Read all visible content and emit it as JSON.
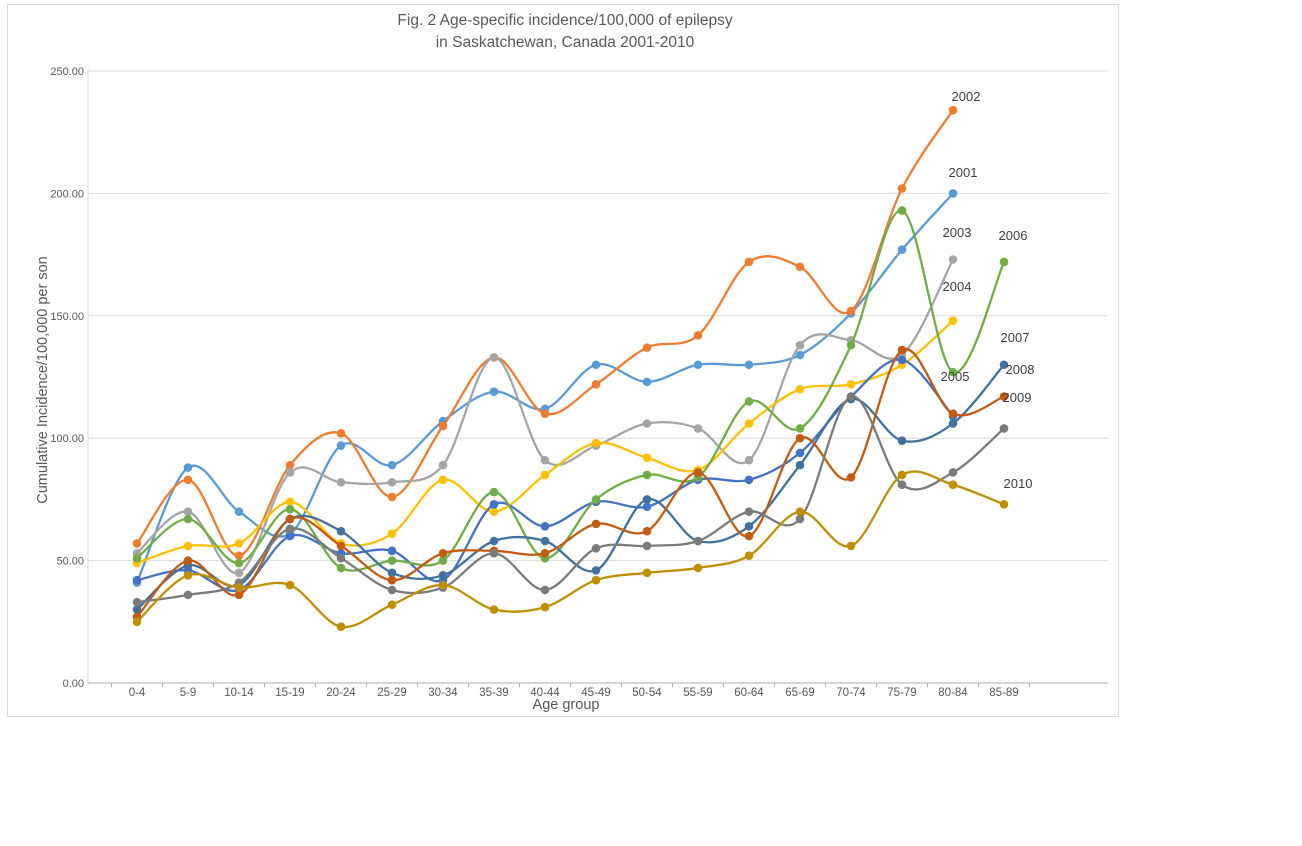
{
  "title": {
    "line1": "Fig. 2 Age-specific incidence/100,000 of epilepsy",
    "line2": "in Saskatchewan, Canada 2001-2010"
  },
  "y_axis": {
    "title": "Cumulative Incidence/100,000 per son",
    "min": 0,
    "max": 250,
    "step": 50,
    "tick_decimals": 2
  },
  "x_axis": {
    "title": "Age group"
  },
  "chart_data": {
    "type": "line",
    "title": "Fig. 2 Age-specific incidence/100,000 of epilepsy in Saskatchewan, Canada 2001-2010",
    "xlabel": "Age group",
    "ylabel": "Cumulative Incidence/100,000 per son",
    "ylim": [
      0,
      250
    ],
    "grid": "horizontal",
    "smooth": true,
    "legend_position": "data-labels-at-line-end",
    "categories": [
      "0-4",
      "5-9",
      "10-14",
      "15-19",
      "20-24",
      "25-29",
      "30-34",
      "35-39",
      "40-44",
      "45-49",
      "50-54",
      "55-59",
      "60-64",
      "65-69",
      "70-74",
      "75-79",
      "80-84",
      "85-89"
    ],
    "series": [
      {
        "name": "2001",
        "color": "#5B9BD5",
        "label_x": 963,
        "label_y": 173,
        "values": [
          41,
          88,
          70,
          61,
          97,
          89,
          107,
          119,
          112,
          130,
          123,
          130,
          130,
          134,
          151,
          177,
          200,
          null
        ]
      },
      {
        "name": "2002",
        "color": "#ED7D31",
        "label_x": 966,
        "label_y": 97,
        "values": [
          57,
          83,
          52,
          89,
          102,
          76,
          105,
          133,
          110,
          122,
          137,
          142,
          172,
          170,
          152,
          202,
          234,
          null
        ]
      },
      {
        "name": "2003",
        "color": "#A5A5A5",
        "label_x": 957,
        "label_y": 233,
        "values": [
          53,
          70,
          45,
          86,
          82,
          82,
          89,
          133,
          91,
          97,
          106,
          104,
          91,
          138,
          140,
          134,
          173,
          null
        ]
      },
      {
        "name": "2004",
        "color": "#FFC000",
        "label_x": 957,
        "label_y": 287,
        "values": [
          49,
          56,
          57,
          74,
          57,
          61,
          83,
          70,
          85,
          98,
          92,
          87,
          106,
          120,
          122,
          130,
          148,
          null
        ]
      },
      {
        "name": "2005",
        "color": "#4472C4",
        "label_x": 955,
        "label_y": 377,
        "values": [
          42,
          46,
          38,
          60,
          53,
          54,
          42,
          73,
          64,
          74,
          72,
          83,
          83,
          94,
          117,
          132,
          109,
          null
        ]
      },
      {
        "name": "2006",
        "color": "#70AD47",
        "label_x": 1013,
        "label_y": 236,
        "values": [
          51,
          67,
          49,
          71,
          47,
          50,
          50,
          78,
          51,
          75,
          85,
          84,
          115,
          104,
          138,
          193,
          127,
          172
        ]
      },
      {
        "name": "2007",
        "color": "#41719C",
        "label_x": 1015,
        "label_y": 338,
        "values": [
          30,
          48,
          40,
          67,
          62,
          45,
          44,
          58,
          58,
          46,
          75,
          58,
          64,
          89,
          116,
          99,
          106,
          130
        ]
      },
      {
        "name": "2008",
        "color": "#C55A11",
        "label_x": 1020,
        "label_y": 370,
        "values": [
          27,
          50,
          36,
          67,
          56,
          42,
          53,
          54,
          53,
          65,
          62,
          86,
          60,
          100,
          84,
          136,
          110,
          117
        ]
      },
      {
        "name": "2009",
        "color": "#7B7B7B",
        "label_x": 1017,
        "label_y": 398,
        "values": [
          33,
          36,
          41,
          63,
          51,
          38,
          39,
          53,
          38,
          55,
          56,
          58,
          70,
          67,
          117,
          81,
          86,
          104
        ]
      },
      {
        "name": "2010",
        "color": "#BF8F00",
        "label_x": 1018,
        "label_y": 484,
        "values": [
          25,
          44,
          39,
          40,
          23,
          32,
          40,
          30,
          31,
          42,
          45,
          47,
          52,
          70,
          56,
          85,
          81,
          73
        ]
      }
    ]
  }
}
